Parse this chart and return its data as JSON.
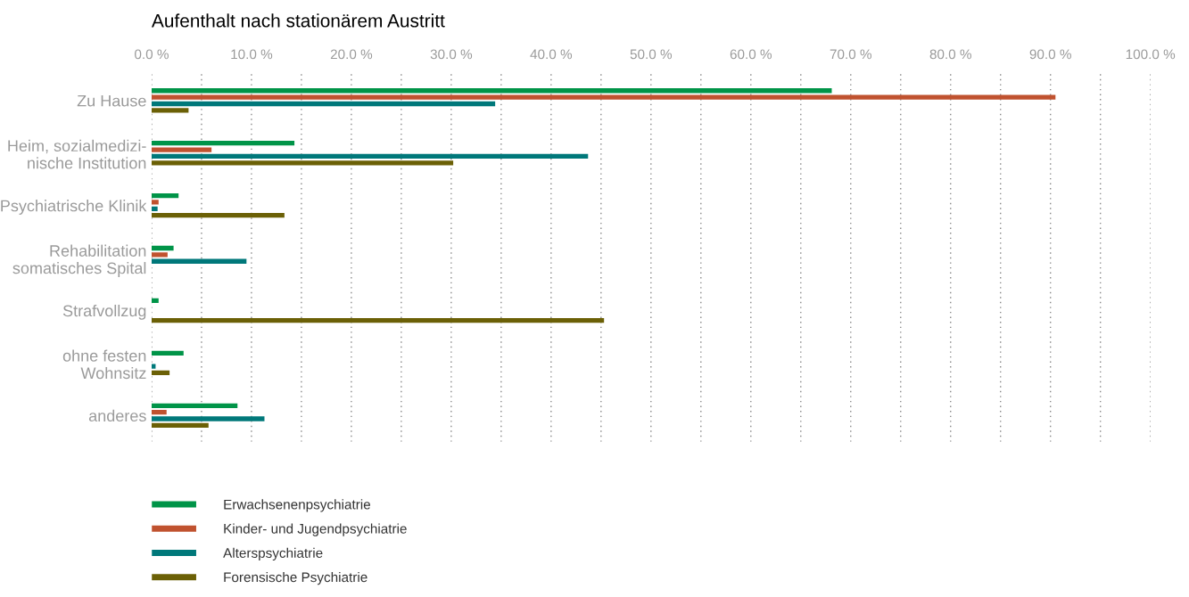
{
  "chart_data": {
    "type": "bar",
    "orientation": "horizontal",
    "title": "Aufenthalt nach stationärem Austritt",
    "categories": [
      "Zu Hause",
      "Heim, sozialmedizi-\nnische Institution",
      "Psychiatrische Klinik",
      "Rehabilitation\nsomatisches Spital",
      "Strafvollzug",
      "ohne festen\nWohnsitz",
      "anderes"
    ],
    "series": [
      {
        "name": "Erwachsenenpsychiatrie",
        "color": "#009448",
        "values": [
          68.1,
          14.3,
          2.7,
          2.2,
          0.7,
          3.2,
          8.6
        ]
      },
      {
        "name": "Kinder- und Jugendpsychiatrie",
        "color": "#c0522f",
        "values": [
          90.5,
          6.0,
          0.7,
          1.6,
          null,
          null,
          1.5
        ]
      },
      {
        "name": "Alterspsychiatrie",
        "color": "#00787a",
        "values": [
          34.4,
          43.7,
          0.6,
          9.5,
          null,
          0.4,
          11.3
        ]
      },
      {
        "name": "Forensische Psychiatrie",
        "color": "#6b6006",
        "values": [
          3.7,
          30.2,
          13.3,
          null,
          45.3,
          1.8,
          5.7
        ]
      }
    ],
    "xlim": [
      0,
      100
    ],
    "xticks": [
      {
        "value": 0,
        "label": "0.0 %"
      },
      {
        "value": 5,
        "label": null
      },
      {
        "value": 10,
        "label": "10.0 %"
      },
      {
        "value": 15,
        "label": null
      },
      {
        "value": 20,
        "label": "20.0 %"
      },
      {
        "value": 25,
        "label": null
      },
      {
        "value": 30,
        "label": "30.0 %"
      },
      {
        "value": 35,
        "label": null
      },
      {
        "value": 40,
        "label": "40.0 %"
      },
      {
        "value": 45,
        "label": null
      },
      {
        "value": 50,
        "label": "50.0 %"
      },
      {
        "value": 55,
        "label": null
      },
      {
        "value": 60,
        "label": "60.0 %"
      },
      {
        "value": 65,
        "label": null
      },
      {
        "value": 70,
        "label": "70.0 %"
      },
      {
        "value": 75,
        "label": null
      },
      {
        "value": 80,
        "label": "80.0 %"
      },
      {
        "value": 85,
        "label": null
      },
      {
        "value": 90,
        "label": "90.0 %"
      },
      {
        "value": 95,
        "label": null
      },
      {
        "value": 100,
        "label": "100.0 %"
      }
    ],
    "grid": "x",
    "legend": "bottom left"
  }
}
